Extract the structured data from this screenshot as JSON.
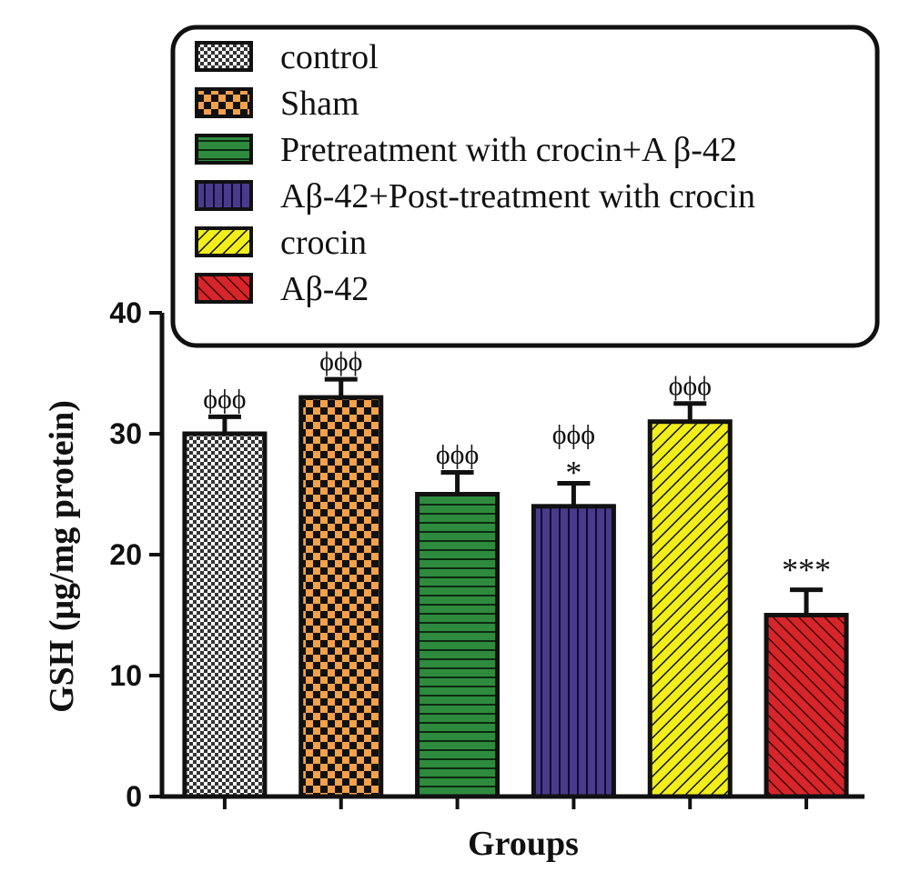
{
  "chart_data": {
    "type": "bar",
    "xlabel": "Groups",
    "ylabel": "GSH (μg/mg protein)",
    "ylim": [
      0,
      40
    ],
    "yticks": [
      0,
      10,
      20,
      30,
      40
    ],
    "legend_placement": "top",
    "categories": [
      "control",
      "Sham",
      "Pretreatment with crocin+A β-42",
      "Aβ-42+Post-treatment with crocin",
      "crocin",
      "Aβ-42"
    ],
    "values": [
      30,
      33,
      25,
      24,
      31,
      15
    ],
    "errors": [
      1.4,
      1.5,
      1.8,
      1.9,
      1.5,
      2.1
    ],
    "annotations": [
      [
        "ϕϕϕ"
      ],
      [
        "ϕϕϕ"
      ],
      [
        "ϕϕϕ"
      ],
      [
        "ϕϕϕ",
        "*"
      ],
      [
        "ϕϕϕ"
      ],
      [
        "***"
      ]
    ],
    "colors": [
      "#ffffff",
      "#f5a04a",
      "#2e8b3e",
      "#4a3a8c",
      "#f2ee1a",
      "#d8252a"
    ],
    "patterns": [
      "checker-fine",
      "checker",
      "horizontal",
      "vertical",
      "diagonal-up",
      "diagonal-down"
    ]
  }
}
